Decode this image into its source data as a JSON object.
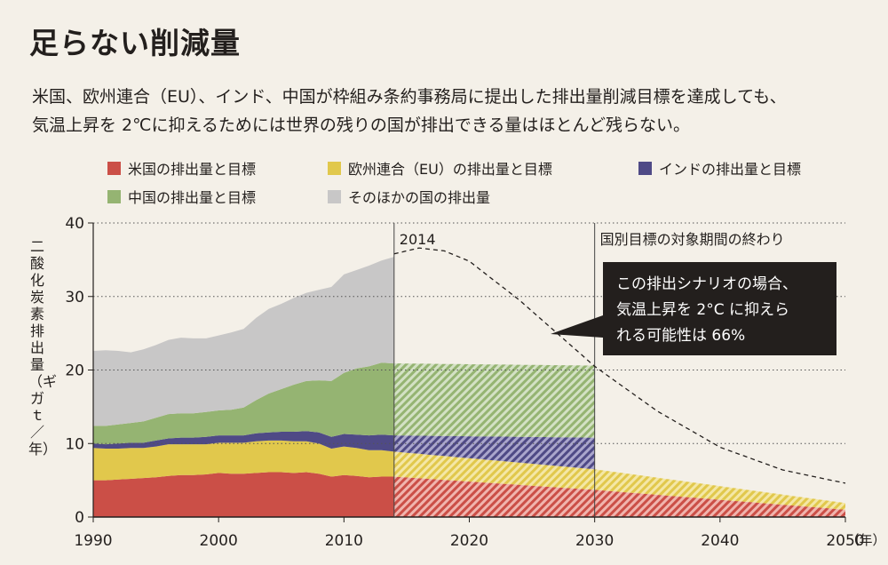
{
  "header": {
    "title": "足らない削減量",
    "subtitle_line1": "米国、欧州連合（EU）、インド、中国が枠組み条約事務局に提出した排出量削減目標を達成しても、",
    "subtitle_line2": "気温上昇を 2℃に抑えるためには世界の残りの国が排出できる量はほとんど残らない。"
  },
  "legend": [
    {
      "label": "米国の排出量と目標",
      "color": "#cb4f47"
    },
    {
      "label": "欧州連合（EU）の排出量と目標",
      "color": "#e1c84c"
    },
    {
      "label": "インドの排出量と目標",
      "color": "#4f4a86"
    },
    {
      "label": "中国の排出量と目標",
      "color": "#95b472"
    },
    {
      "label": "そのほかの国の排出量",
      "color": "#c8c7c7"
    }
  ],
  "chart_data": {
    "type": "area",
    "stacked": true,
    "xlabel": "（年）",
    "ylabel": "二酸化炭素排出量（ギガｔ／年）",
    "xlim": [
      1990,
      2050
    ],
    "ylim": [
      0,
      40
    ],
    "x_ticks": [
      1990,
      2000,
      2010,
      2020,
      2030,
      2040,
      2050
    ],
    "y_ticks": [
      0,
      10,
      20,
      30,
      40
    ],
    "grid": "horizontal dotted",
    "historical_x": [
      1990,
      1991,
      1992,
      1993,
      1994,
      1995,
      1996,
      1997,
      1998,
      1999,
      2000,
      2001,
      2002,
      2003,
      2004,
      2005,
      2006,
      2007,
      2008,
      2009,
      2010,
      2011,
      2012,
      2013,
      2014
    ],
    "series": [
      {
        "name": "米国の排出量と目標",
        "color": "#cb4f47",
        "historical": [
          5.0,
          5.0,
          5.1,
          5.2,
          5.3,
          5.4,
          5.6,
          5.7,
          5.7,
          5.8,
          6.0,
          5.9,
          5.9,
          6.0,
          6.1,
          6.1,
          6.0,
          6.1,
          5.9,
          5.5,
          5.7,
          5.6,
          5.4,
          5.5,
          5.5
        ],
        "target_x": [
          2014,
          2030,
          2050
        ],
        "target": [
          5.5,
          3.7,
          1.0
        ]
      },
      {
        "name": "欧州連合（EU）の排出量と目標",
        "color": "#e1c84c",
        "historical": [
          4.4,
          4.3,
          4.2,
          4.2,
          4.1,
          4.2,
          4.3,
          4.2,
          4.2,
          4.1,
          4.1,
          4.2,
          4.2,
          4.3,
          4.3,
          4.3,
          4.3,
          4.2,
          4.1,
          3.8,
          3.9,
          3.8,
          3.7,
          3.6,
          3.4
        ],
        "target_x": [
          2014,
          2030,
          2050
        ],
        "target": [
          3.4,
          2.8,
          0.9
        ]
      },
      {
        "name": "インドの排出量と目標",
        "color": "#4f4a86",
        "historical": [
          0.6,
          0.6,
          0.7,
          0.7,
          0.7,
          0.8,
          0.8,
          0.9,
          0.9,
          1.0,
          1.0,
          1.0,
          1.0,
          1.1,
          1.1,
          1.2,
          1.3,
          1.4,
          1.5,
          1.6,
          1.7,
          1.8,
          2.0,
          2.1,
          2.2
        ],
        "target_x": [
          2014,
          2030
        ],
        "target": [
          2.2,
          4.3
        ]
      },
      {
        "name": "中国の排出量と目標",
        "color": "#95b472",
        "historical": [
          2.4,
          2.5,
          2.6,
          2.7,
          2.9,
          3.1,
          3.3,
          3.3,
          3.3,
          3.4,
          3.4,
          3.5,
          3.8,
          4.5,
          5.3,
          5.8,
          6.4,
          6.8,
          7.1,
          7.6,
          8.3,
          9.0,
          9.4,
          9.8,
          9.8
        ],
        "target_x": [
          2014,
          2030
        ],
        "target": [
          9.8,
          9.8
        ]
      },
      {
        "name": "そのほかの国の排出量",
        "color": "#c8c7c7",
        "historical": [
          10.2,
          10.3,
          10.0,
          9.6,
          9.8,
          9.9,
          10.1,
          10.3,
          10.2,
          10.0,
          10.2,
          10.5,
          10.7,
          11.2,
          11.5,
          11.6,
          11.8,
          12.0,
          12.3,
          12.8,
          13.4,
          13.4,
          13.7,
          13.9,
          14.5
        ],
        "target_x": [],
        "target": []
      }
    ],
    "scenario_2C": {
      "x": [
        2014,
        2016,
        2018,
        2020,
        2024,
        2028,
        2030,
        2035,
        2040,
        2045,
        2050
      ],
      "y": [
        35.8,
        36.6,
        36.2,
        34.8,
        29.5,
        23.5,
        20.5,
        14.4,
        9.5,
        6.4,
        4.6
      ]
    },
    "annotations": {
      "year_2014": "2014",
      "target_end": "国別目標の対象期間の終わり",
      "callout": [
        "この排出シナリオの場合、",
        "気温上昇を 2°C に抑えら",
        "れる可能性は 66%"
      ]
    }
  }
}
